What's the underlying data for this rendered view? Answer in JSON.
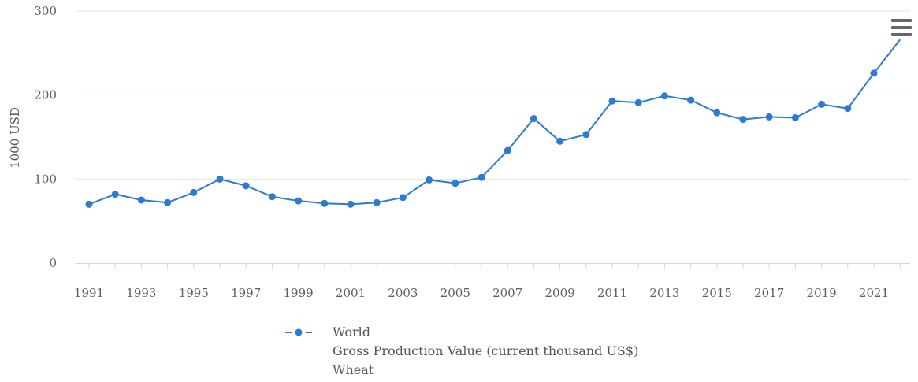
{
  "chart_data": {
    "type": "line",
    "title": "",
    "xlabel": "",
    "ylabel": "1000 USD",
    "x": [
      1991,
      1992,
      1993,
      1994,
      1995,
      1996,
      1997,
      1998,
      1999,
      2000,
      2001,
      2002,
      2003,
      2004,
      2005,
      2006,
      2007,
      2008,
      2009,
      2010,
      2011,
      2012,
      2013,
      2014,
      2015,
      2016,
      2017,
      2018,
      2019,
      2020,
      2021,
      2022
    ],
    "series": [
      {
        "name": "World",
        "color": "#2b7bd0",
        "values": [
          70,
          82,
          75,
          72,
          84,
          100,
          92,
          79,
          74,
          71,
          70,
          72,
          78,
          99,
          95,
          102,
          134,
          172,
          145,
          153,
          193,
          191,
          199,
          194,
          179,
          171,
          174,
          173,
          189,
          184,
          226,
          266
        ]
      }
    ],
    "xticks": [
      "1991",
      "1993",
      "1995",
      "1997",
      "1999",
      "2001",
      "2003",
      "2005",
      "2007",
      "2009",
      "2011",
      "2013",
      "2015",
      "2017",
      "2019",
      "2021"
    ],
    "yticks": [
      "0",
      "100",
      "200",
      "300"
    ],
    "ylim": [
      0,
      300
    ],
    "grid": true,
    "legend_position": "bottom-center",
    "legend_lines": [
      "World",
      "Gross Production Value (current thousand US$)",
      "Wheat"
    ]
  },
  "ui": {
    "menu_icon": "hamburger-menu-icon"
  }
}
